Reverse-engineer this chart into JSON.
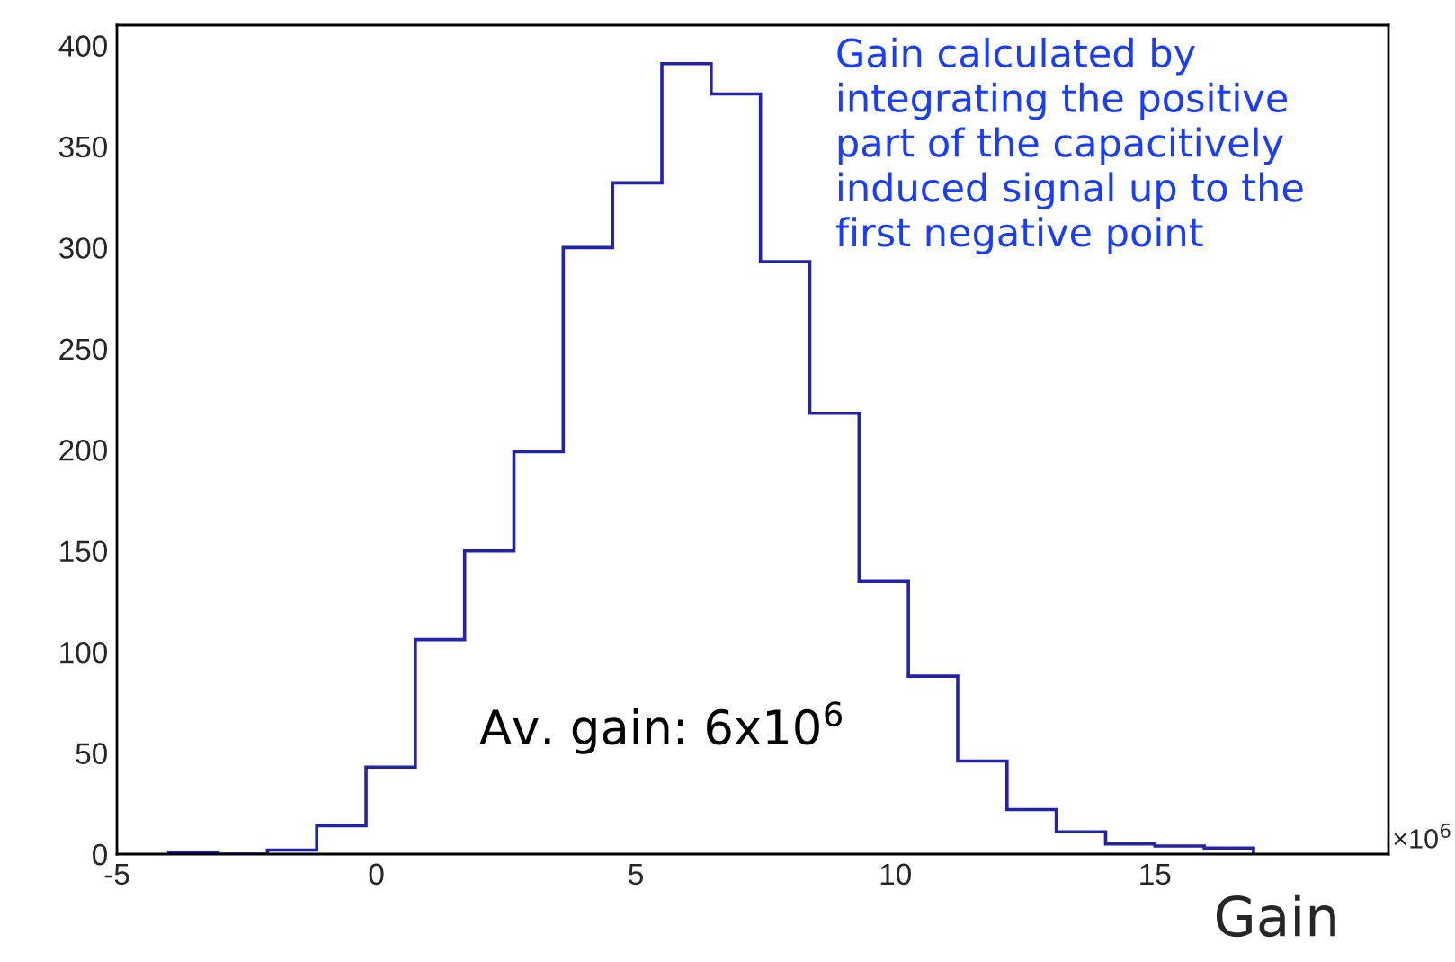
{
  "chart_data": {
    "type": "histogram",
    "xlabel": "Gain",
    "bins": [
      -4.0,
      -3.05,
      -2.1,
      -1.15,
      -0.2,
      0.75,
      1.7,
      2.65,
      3.6,
      4.55,
      5.5,
      6.45,
      7.4,
      8.35,
      9.3,
      10.25,
      11.2,
      12.15,
      13.1,
      14.05,
      15.0,
      15.95,
      16.9
    ],
    "values": [
      1,
      0,
      2,
      14,
      43,
      106,
      150,
      199,
      300,
      332,
      391,
      376,
      293,
      218,
      135,
      88,
      46,
      22,
      11,
      5,
      4,
      3
    ],
    "color": "#2222aa",
    "xlim": [
      -5,
      19.5
    ],
    "xticks": [
      -5,
      0,
      5,
      10,
      15
    ],
    "ylim": [
      0,
      410
    ],
    "yticks": [
      0,
      50,
      100,
      150,
      200,
      250,
      300,
      350,
      400
    ],
    "grid": false,
    "annotations": [
      "×10$^{6}$",
      "Gain calculated by\nintegrating the positive\npart of the capacitively\ninduced signal up to the\nfirst negative point",
      "Av. gain: 6x10$^{6}$"
    ]
  }
}
